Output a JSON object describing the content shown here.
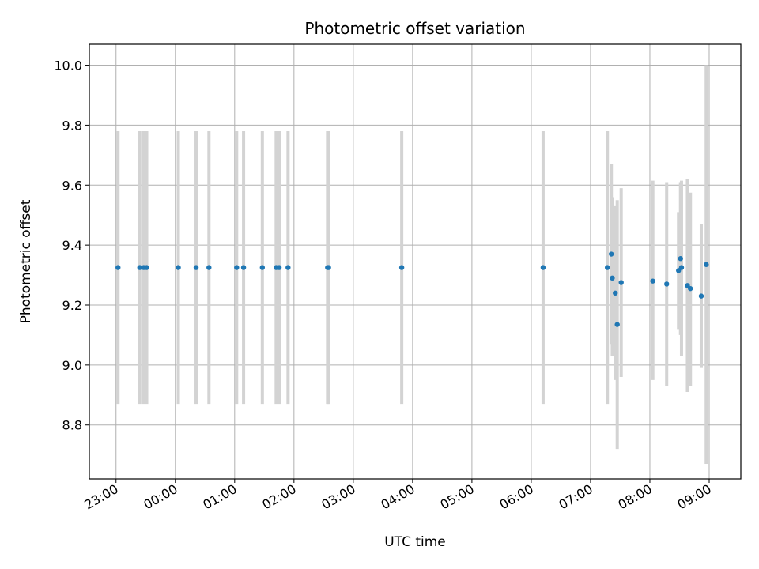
{
  "chart_data": {
    "type": "scatter",
    "title": "Photometric offset variation",
    "xlabel": "UTC time",
    "ylabel": "Photometric offset",
    "x_unit": "UTC time of day; times after midnight belong to the following day",
    "xlim": [
      "22:33",
      "09:32"
    ],
    "ylim": [
      8.62,
      10.07
    ],
    "x_ticks": [
      "23:00",
      "00:00",
      "01:00",
      "02:00",
      "03:00",
      "04:00",
      "05:00",
      "06:00",
      "07:00",
      "08:00",
      "09:00"
    ],
    "y_ticks": [
      "8.8",
      "9.0",
      "9.2",
      "9.4",
      "9.6",
      "9.8",
      "10.0"
    ],
    "grid": true,
    "marker_color": "#1f77b4",
    "errorbar_color": "#d3d3d3",
    "series": [
      {
        "points": [
          {
            "x": "23:02",
            "y": 9.325,
            "lo": 8.87,
            "hi": 9.78
          },
          {
            "x": "23:24",
            "y": 9.325,
            "lo": 8.87,
            "hi": 9.78
          },
          {
            "x": "23:28",
            "y": 9.325,
            "lo": 8.87,
            "hi": 9.78
          },
          {
            "x": "23:31",
            "y": 9.325,
            "lo": 8.87,
            "hi": 9.78
          },
          {
            "x": "00:03",
            "y": 9.325,
            "lo": 8.87,
            "hi": 9.78
          },
          {
            "x": "00:21",
            "y": 9.325,
            "lo": 8.87,
            "hi": 9.78
          },
          {
            "x": "00:34",
            "y": 9.325,
            "lo": 8.87,
            "hi": 9.78
          },
          {
            "x": "01:02",
            "y": 9.325,
            "lo": 8.87,
            "hi": 9.78
          },
          {
            "x": "01:09",
            "y": 9.325,
            "lo": 8.87,
            "hi": 9.78
          },
          {
            "x": "01:28",
            "y": 9.325,
            "lo": 8.87,
            "hi": 9.78
          },
          {
            "x": "01:42",
            "y": 9.325,
            "lo": 8.87,
            "hi": 9.78
          },
          {
            "x": "01:45",
            "y": 9.325,
            "lo": 8.87,
            "hi": 9.78
          },
          {
            "x": "01:54",
            "y": 9.325,
            "lo": 8.87,
            "hi": 9.78
          },
          {
            "x": "02:34",
            "y": 9.325,
            "lo": 8.87,
            "hi": 9.78
          },
          {
            "x": "02:35",
            "y": 9.325,
            "lo": 8.87,
            "hi": 9.78
          },
          {
            "x": "03:49",
            "y": 9.325,
            "lo": 8.87,
            "hi": 9.78
          },
          {
            "x": "06:12",
            "y": 9.325,
            "lo": 8.87,
            "hi": 9.78
          },
          {
            "x": "07:17",
            "y": 9.325,
            "lo": 8.87,
            "hi": 9.78
          },
          {
            "x": "07:21",
            "y": 9.37,
            "lo": 9.07,
            "hi": 9.67
          },
          {
            "x": "07:22",
            "y": 9.29,
            "lo": 9.03,
            "hi": 9.56
          },
          {
            "x": "07:25",
            "y": 9.24,
            "lo": 8.95,
            "hi": 9.53
          },
          {
            "x": "07:27",
            "y": 9.135,
            "lo": 8.72,
            "hi": 9.55
          },
          {
            "x": "07:31",
            "y": 9.275,
            "lo": 8.96,
            "hi": 9.59
          },
          {
            "x": "08:03",
            "y": 9.28,
            "lo": 8.95,
            "hi": 9.615
          },
          {
            "x": "08:17",
            "y": 9.27,
            "lo": 8.93,
            "hi": 9.61
          },
          {
            "x": "08:29",
            "y": 9.315,
            "lo": 9.12,
            "hi": 9.51
          },
          {
            "x": "08:31",
            "y": 9.355,
            "lo": 9.1,
            "hi": 9.61
          },
          {
            "x": "08:32",
            "y": 9.325,
            "lo": 9.03,
            "hi": 9.615
          },
          {
            "x": "08:38",
            "y": 9.265,
            "lo": 8.91,
            "hi": 9.62
          },
          {
            "x": "08:41",
            "y": 9.255,
            "lo": 8.93,
            "hi": 9.575
          },
          {
            "x": "08:52",
            "y": 9.23,
            "lo": 8.99,
            "hi": 9.47
          },
          {
            "x": "08:57",
            "y": 9.335,
            "lo": 8.67,
            "hi": 10.0
          }
        ]
      }
    ]
  }
}
